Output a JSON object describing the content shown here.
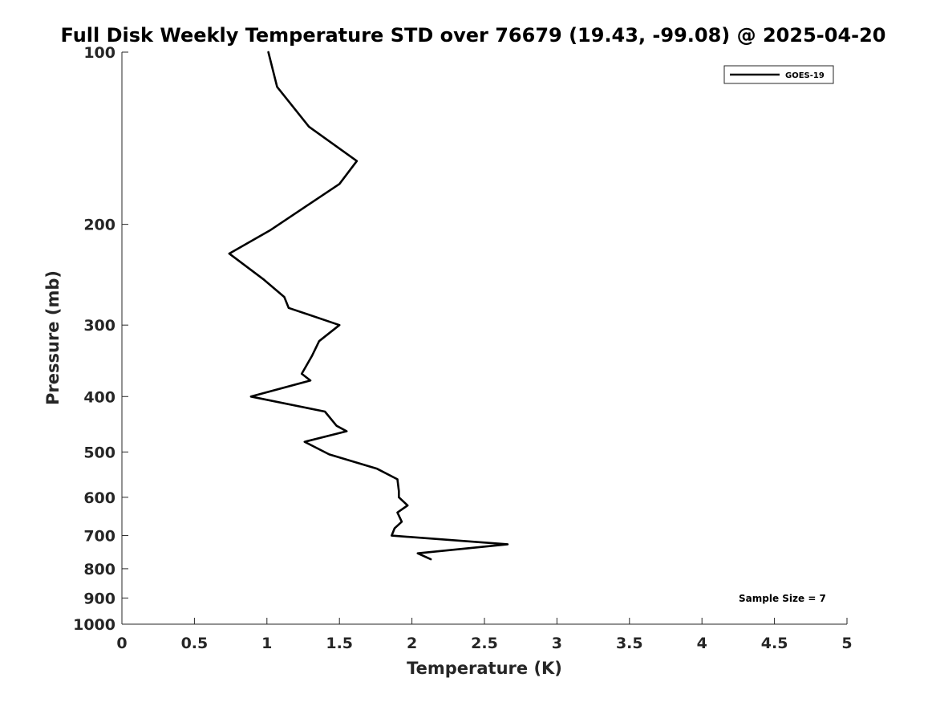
{
  "chart_data": {
    "type": "line",
    "title": "Full Disk Weekly Temperature STD over 76679 (19.43, -99.08) @ 2025-04-20",
    "xlabel": "Temperature (K)",
    "ylabel": "Pressure (mb)",
    "xlim": [
      0,
      5
    ],
    "ylim": [
      100,
      1000
    ],
    "yscale": "log",
    "y_reversed": true,
    "xticks": [
      0,
      0.5,
      1,
      1.5,
      2,
      2.5,
      3,
      3.5,
      4,
      4.5,
      5
    ],
    "xtick_labels": [
      "0",
      "0.5",
      "1",
      "1.5",
      "2",
      "2.5",
      "3",
      "3.5",
      "4",
      "4.5",
      "5"
    ],
    "yticks": [
      100,
      200,
      300,
      400,
      500,
      600,
      700,
      800,
      900,
      1000
    ],
    "ytick_labels": [
      "100",
      "200",
      "300",
      "400",
      "500",
      "600",
      "700",
      "800",
      "900",
      "1000"
    ],
    "legend": {
      "position": "top-right",
      "entries": [
        "GOES-19"
      ]
    },
    "annotation": "Sample Size = 7",
    "color": "#000000",
    "series": [
      {
        "name": "GOES-19",
        "x": [
          1.01,
          1.07,
          1.29,
          1.62,
          1.5,
          1.02,
          0.74,
          0.98,
          1.12,
          1.15,
          1.5,
          1.36,
          1.31,
          1.24,
          1.3,
          0.89,
          1.4,
          1.48,
          1.55,
          1.26,
          1.43,
          1.76,
          1.9,
          1.91,
          1.91,
          1.97,
          1.9,
          1.93,
          1.88,
          1.86,
          2.66,
          2.04,
          2.13
        ],
        "y": [
          100,
          115,
          135,
          155,
          170,
          205,
          225,
          250,
          268,
          280,
          300,
          320,
          340,
          365,
          375,
          400,
          425,
          450,
          460,
          480,
          505,
          535,
          558,
          585,
          600,
          620,
          638,
          662,
          680,
          700,
          725,
          752,
          770
        ]
      }
    ]
  }
}
